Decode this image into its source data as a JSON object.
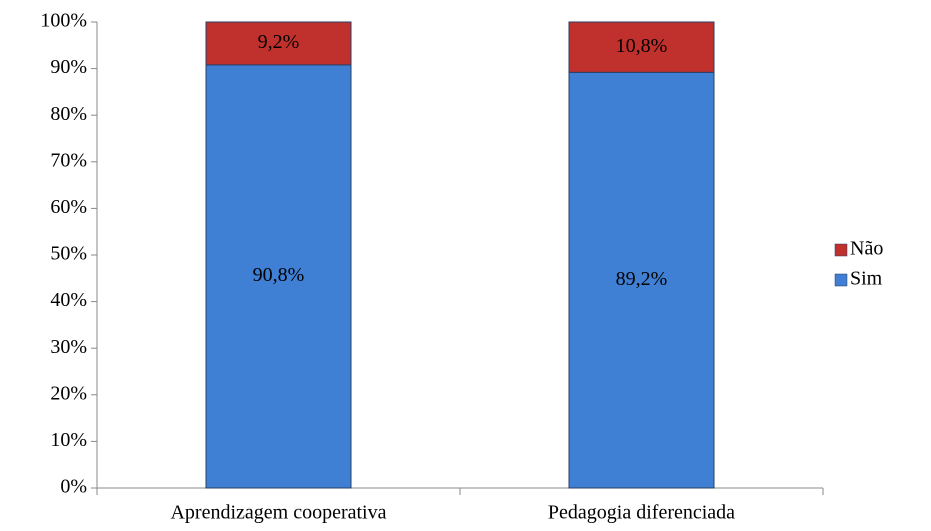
{
  "chart_data": {
    "type": "stacked_bar",
    "categories": [
      "Aprendizagem cooperativa",
      "Pedagogia diferenciada"
    ],
    "series": [
      {
        "name": "Sim",
        "color": "#3f7fd4",
        "values": [
          90.8,
          89.2
        ],
        "value_labels": [
          "90,8%",
          "89,2%"
        ]
      },
      {
        "name": "Não",
        "color": "#c0302c",
        "values": [
          9.2,
          10.8
        ],
        "value_labels": [
          "9,2%",
          "10,8%"
        ]
      }
    ],
    "ylim": [
      0,
      100
    ],
    "yticks": [
      {
        "value": 0,
        "label": "0%"
      },
      {
        "value": 10,
        "label": "10%"
      },
      {
        "value": 20,
        "label": "20%"
      },
      {
        "value": 30,
        "label": "30%"
      },
      {
        "value": 40,
        "label": "40%"
      },
      {
        "value": 50,
        "label": "50%"
      },
      {
        "value": 60,
        "label": "60%"
      },
      {
        "value": 70,
        "label": "70%"
      },
      {
        "value": 80,
        "label": "80%"
      },
      {
        "value": 90,
        "label": "90%"
      },
      {
        "value": 100,
        "label": "100%"
      }
    ],
    "grid": false,
    "legend": "right"
  }
}
